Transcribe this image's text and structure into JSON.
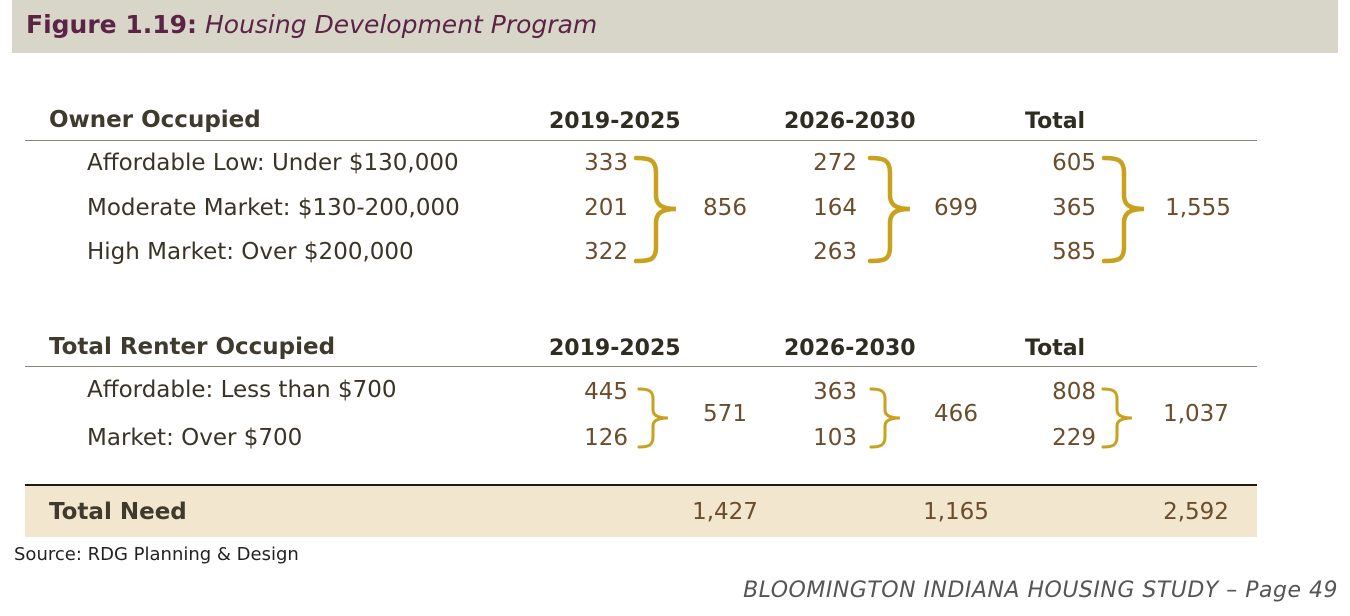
{
  "figure": {
    "label": "Figure 1.19:",
    "name": "Housing Development Program"
  },
  "owner": {
    "heading": "Owner Occupied",
    "col1": "2019-2025",
    "col2": "2026-2030",
    "col3": "Total",
    "rows": [
      {
        "label": "Affordable Low: Under $130,000",
        "v1": "333",
        "v2": "272",
        "v3": "605"
      },
      {
        "label": "Moderate Market: $130-200,000",
        "v1": "201",
        "v2": "164",
        "v3": "365"
      },
      {
        "label": "High Market: Over $200,000",
        "v1": "322",
        "v2": "263",
        "v3": "585"
      }
    ],
    "subtotal1": "856",
    "subtotal2": "699",
    "subtotal3": "1,555"
  },
  "renter": {
    "heading": "Total Renter Occupied",
    "col1": "2019-2025",
    "col2": "2026-2030",
    "col3": "Total",
    "rows": [
      {
        "label": "Affordable: Less than $700",
        "v1": "445",
        "v2": "363",
        "v3": "808"
      },
      {
        "label": "Market: Over $700",
        "v1": "126",
        "v2": "103",
        "v3": "229"
      }
    ],
    "subtotal1": "571",
    "subtotal2": "466",
    "subtotal3": "1,037"
  },
  "total_need": {
    "label": "Total Need",
    "v1": "1,427",
    "v2": "1,165",
    "v3": "2,592"
  },
  "source": "Source: RDG Planning & Design",
  "footer": "BLOOMINGTON INDIANA HOUSING STUDY – Page 49",
  "colors": {
    "brace": "#c8a21e",
    "title": "#5b2346",
    "band": "#f2e6cf",
    "header": "#d8d6c8"
  }
}
